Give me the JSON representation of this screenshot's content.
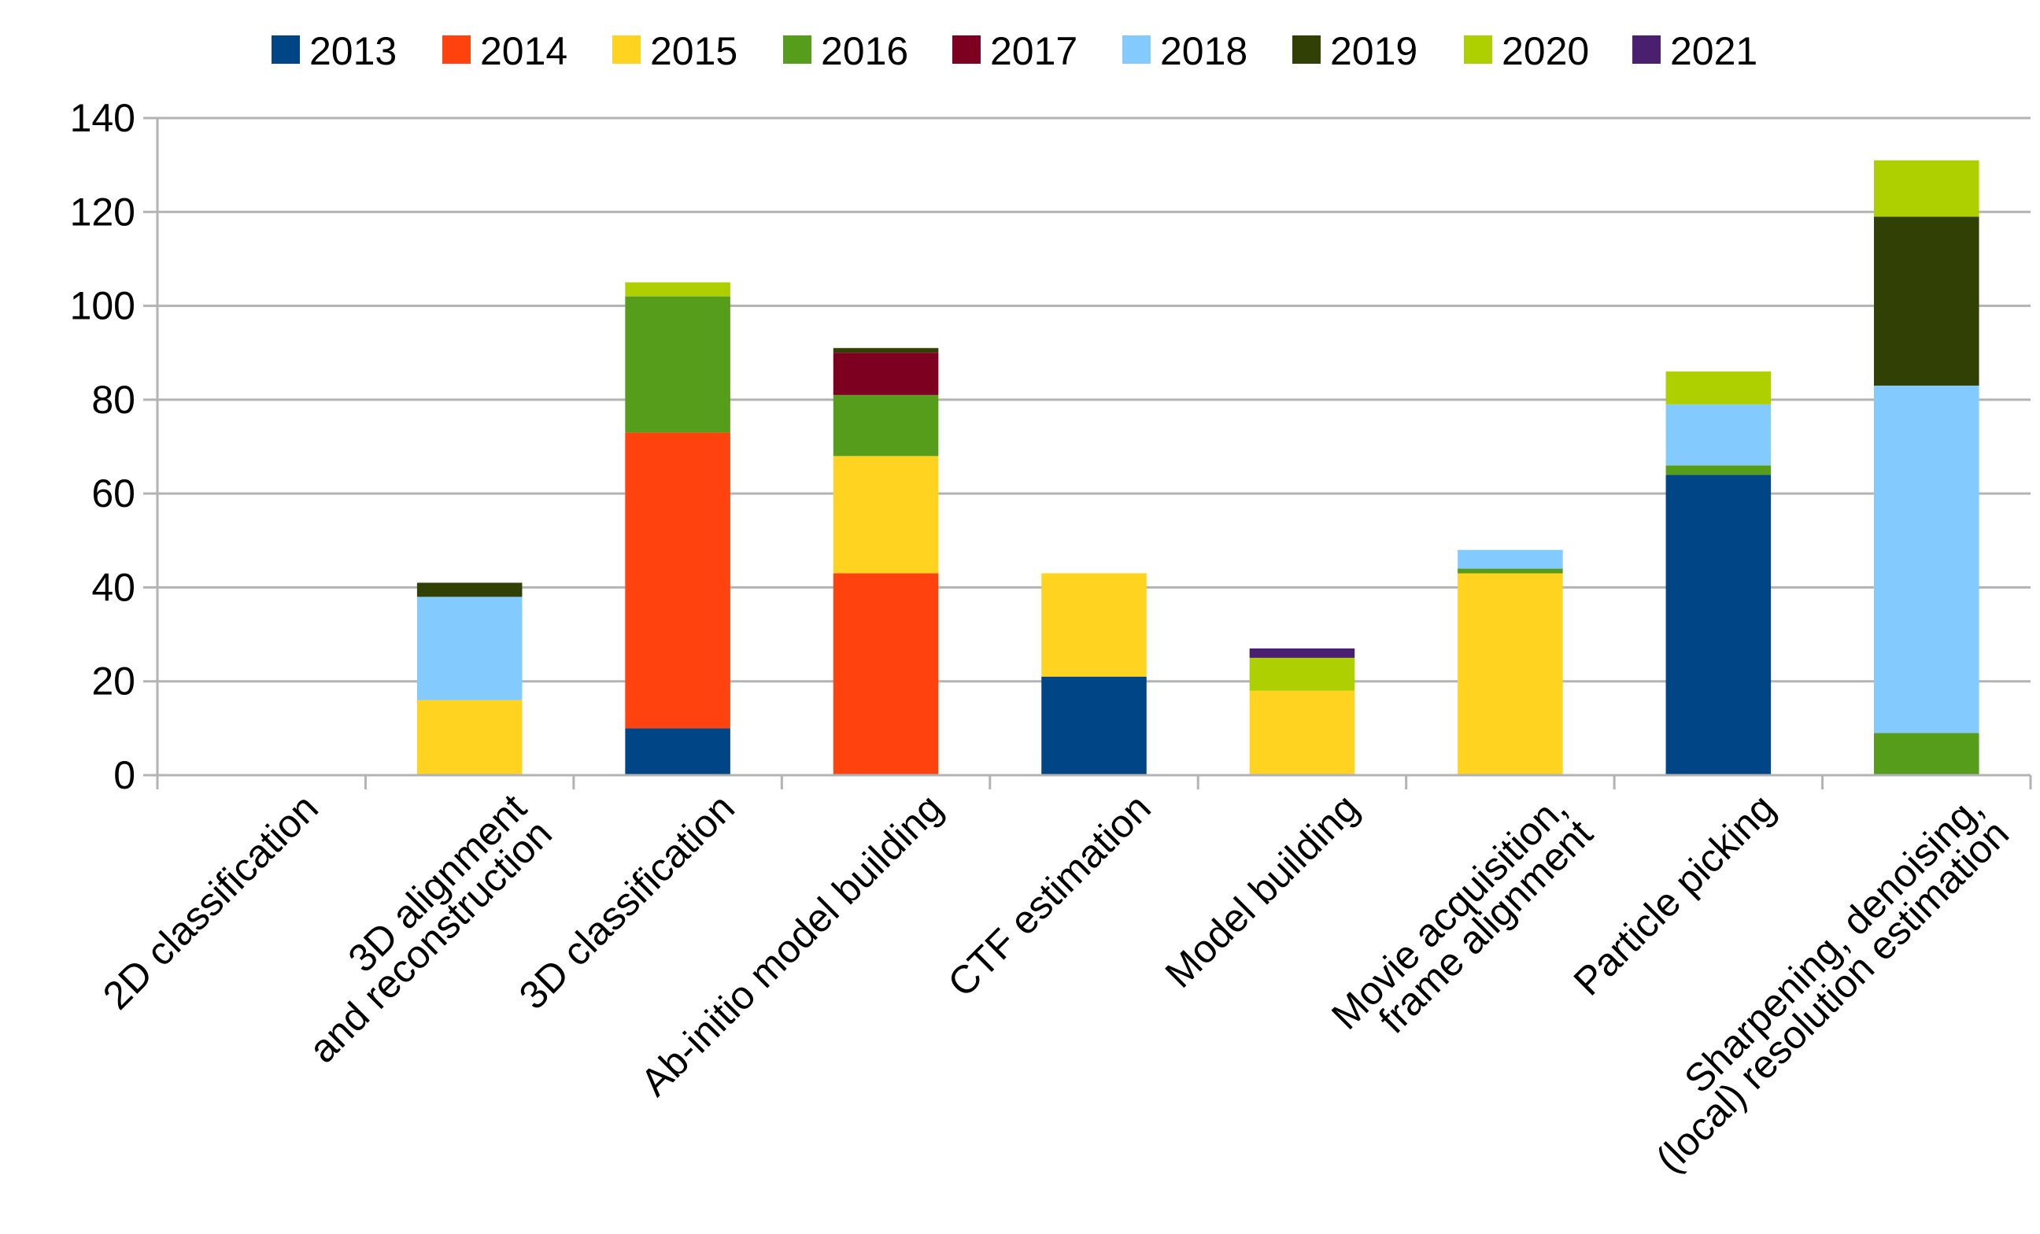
{
  "chart_data": {
    "type": "bar",
    "stacked": true,
    "title": "",
    "xlabel": "",
    "ylabel": "",
    "ylim": [
      0,
      140
    ],
    "yticks": [
      0,
      20,
      40,
      60,
      80,
      100,
      120,
      140
    ],
    "grid": true,
    "legend_position": "top",
    "categories": [
      [
        "2D classification"
      ],
      [
        "3D alignment",
        "and reconstruction"
      ],
      [
        "3D classification"
      ],
      [
        "Ab-initio model building"
      ],
      [
        "CTF estimation"
      ],
      [
        "Model building"
      ],
      [
        "Movie acquisition,",
        "frame alignment"
      ],
      [
        "Particle picking"
      ],
      [
        "Sharpening, denoising,",
        "(local) resolution estimation"
      ]
    ],
    "series": [
      {
        "name": "2013",
        "color": "#004586",
        "values": [
          0,
          0,
          10,
          0,
          21,
          0,
          0,
          64,
          0
        ]
      },
      {
        "name": "2014",
        "color": "#ff420e",
        "values": [
          0,
          0,
          63,
          43,
          0,
          0,
          0,
          0,
          0
        ]
      },
      {
        "name": "2015",
        "color": "#ffd320",
        "values": [
          0,
          16,
          0,
          25,
          22,
          18,
          43,
          0,
          0
        ]
      },
      {
        "name": "2016",
        "color": "#579d1c",
        "values": [
          0,
          0,
          29,
          13,
          0,
          0,
          1,
          2,
          9
        ]
      },
      {
        "name": "2017",
        "color": "#7e0021",
        "values": [
          0,
          0,
          0,
          9,
          0,
          0,
          0,
          0,
          0
        ]
      },
      {
        "name": "2018",
        "color": "#83caff",
        "values": [
          0,
          22,
          0,
          0,
          0,
          0,
          4,
          13,
          74
        ]
      },
      {
        "name": "2019",
        "color": "#314004",
        "values": [
          0,
          3,
          0,
          1,
          0,
          0,
          0,
          0,
          36
        ]
      },
      {
        "name": "2020",
        "color": "#aecf00",
        "values": [
          0,
          0,
          3,
          0,
          0,
          7,
          0,
          7,
          12
        ]
      },
      {
        "name": "2021",
        "color": "#4b1f6f",
        "values": [
          0,
          0,
          0,
          0,
          0,
          2,
          0,
          0,
          0
        ]
      }
    ]
  }
}
